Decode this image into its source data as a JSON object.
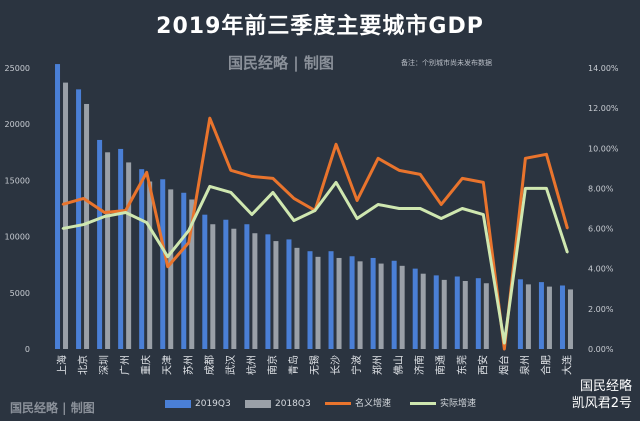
{
  "header": {
    "title": "2019年前三季度主要城市GDP",
    "brand": "国民经略 | 制图",
    "note": "备注：个别城市尚未发布数据"
  },
  "footer": {
    "brand": "国民经略 | 制图",
    "watermark_line1": "国民经略",
    "watermark_line2": "凯风君2号"
  },
  "colors": {
    "background": "#2b3440",
    "bar_2019": "#4a7fd6",
    "bar_2018": "#9aa0a8",
    "nominal_line": "#e9742d",
    "real_line": "#cfe7b0"
  },
  "chart_data": {
    "type": "bar",
    "title": "2019年前三季度主要城市GDP",
    "categories": [
      "上海",
      "北京",
      "深圳",
      "广州",
      "重庆",
      "天津",
      "苏州",
      "成都",
      "武汉",
      "杭州",
      "南京",
      "青岛",
      "无锡",
      "长沙",
      "宁波",
      "郑州",
      "佛山",
      "济南",
      "南通",
      "东莞",
      "西安",
      "烟台",
      "泉州",
      "合肥",
      "大连"
    ],
    "series": [
      {
        "name": "2019Q3",
        "axis": "left",
        "values": [
          25350,
          23100,
          18600,
          17800,
          16000,
          15100,
          13900,
          11950,
          11500,
          11100,
          10200,
          9750,
          8700,
          8700,
          8250,
          8100,
          7850,
          7150,
          6550,
          6450,
          6300,
          0,
          6200,
          5950,
          5650
        ]
      },
      {
        "name": "2018Q3",
        "axis": "left",
        "values": [
          23700,
          21800,
          17500,
          16600,
          14900,
          14200,
          13300,
          11100,
          10700,
          10300,
          9600,
          9000,
          8200,
          8100,
          7800,
          7600,
          7400,
          6700,
          6150,
          6050,
          5850,
          0,
          5750,
          5550,
          5300
        ]
      },
      {
        "name": "名义增速",
        "axis": "right",
        "values": [
          7.2,
          7.5,
          6.8,
          6.9,
          8.8,
          4.1,
          5.3,
          11.5,
          8.9,
          8.6,
          8.5,
          7.5,
          6.9,
          10.2,
          7.4,
          9.5,
          8.9,
          8.7,
          7.2,
          8.5,
          8.3,
          0.0,
          9.5,
          9.7,
          6.0
        ]
      },
      {
        "name": "实际增速",
        "axis": "right",
        "values": [
          6.0,
          6.2,
          6.6,
          6.8,
          6.3,
          4.6,
          5.9,
          8.1,
          7.8,
          6.7,
          7.8,
          6.4,
          6.9,
          8.3,
          6.5,
          7.2,
          7.0,
          7.0,
          6.5,
          7.0,
          6.7,
          0.3,
          8.0,
          8.0,
          4.8
        ]
      }
    ],
    "ylim_left": [
      0,
      25000
    ],
    "yticks_left": [
      0,
      5000,
      10000,
      15000,
      20000,
      25000
    ],
    "ylim_right": [
      0,
      14
    ],
    "yticks_right": [
      "0.00%",
      "2.00%",
      "4.00%",
      "6.00%",
      "8.00%",
      "10.00%",
      "12.00%",
      "14.00%"
    ],
    "legend": [
      "2019Q3",
      "2018Q3",
      "名义增速",
      "实际增速"
    ],
    "legend_position": "bottom",
    "grid": false
  }
}
